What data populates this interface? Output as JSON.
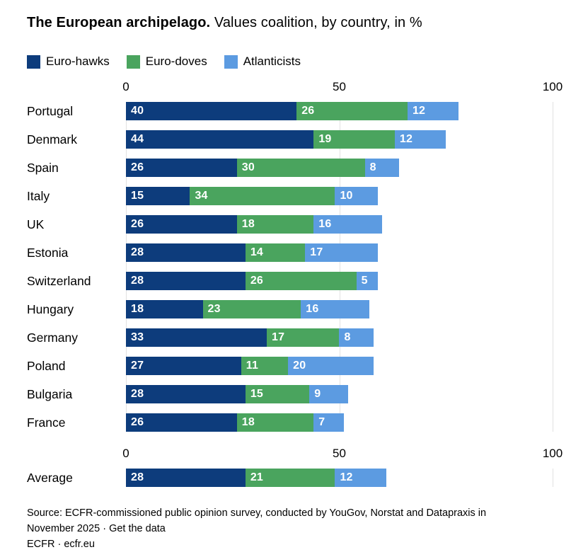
{
  "title": {
    "bold": "The European archipelago.",
    "rest": " Values coalition, by country, in %"
  },
  "legend": [
    {
      "label": "Euro-hawks",
      "color": "#0d3c7c"
    },
    {
      "label": "Euro-doves",
      "color": "#4aa45e"
    },
    {
      "label": "Atlanticists",
      "color": "#5c9be1"
    }
  ],
  "colors": {
    "euro_hawks": "#0d3c7c",
    "euro_doves": "#4aa45e",
    "atlanticists": "#5c9be1",
    "gridline": "#e1e1e1",
    "value_text": "#ffffff"
  },
  "chart_data": {
    "type": "bar",
    "orientation": "horizontal",
    "stacked": true,
    "title": "The European archipelago. Values coalition, by country, in %",
    "xlabel": "",
    "ylabel": "",
    "xlim": [
      0,
      100
    ],
    "axis_ticks": [
      0,
      50,
      100
    ],
    "grid": true,
    "legend_position": "top",
    "categories": [
      "Portugal",
      "Denmark",
      "Spain",
      "Italy",
      "UK",
      "Estonia",
      "Switzerland",
      "Hungary",
      "Germany",
      "Poland",
      "Bulgaria",
      "France"
    ],
    "series": [
      {
        "name": "Euro-hawks",
        "color": "#0d3c7c",
        "values": [
          40,
          44,
          26,
          15,
          26,
          28,
          28,
          18,
          33,
          27,
          28,
          26
        ]
      },
      {
        "name": "Euro-doves",
        "color": "#4aa45e",
        "values": [
          26,
          19,
          30,
          34,
          18,
          14,
          26,
          23,
          17,
          11,
          15,
          18
        ]
      },
      {
        "name": "Atlanticists",
        "color": "#5c9be1",
        "values": [
          12,
          12,
          8,
          10,
          16,
          17,
          5,
          16,
          8,
          20,
          9,
          7
        ]
      }
    ],
    "average_row": {
      "label": "Average",
      "values": [
        28,
        21,
        12
      ]
    }
  },
  "footer": {
    "source_line1": "Source: ECFR-commissioned public opinion survey, conducted by YouGov, Norstat and Datapraxis in",
    "source_line2_prefix": "November 2025 · ",
    "link": "Get the data",
    "attribution": "ECFR · ecfr.eu"
  }
}
